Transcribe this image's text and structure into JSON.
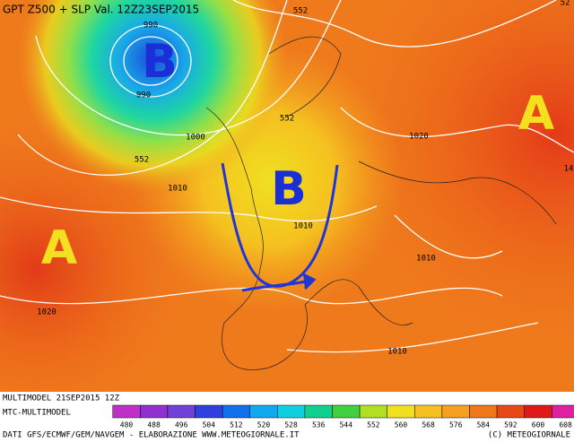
{
  "header": {
    "title": "GPT Z500 + SLP Val. 12Z23SEP2015"
  },
  "map": {
    "pressure_systems": [
      "B",
      "B",
      "A",
      "A"
    ],
    "contour_labels": [
      "990",
      "990",
      "552",
      "552",
      "552",
      "1000",
      "1010",
      "1010",
      "1020",
      "1010",
      "1020",
      "1010",
      "14",
      "52"
    ]
  },
  "footer": {
    "run": "MULTIMODEL 21SEP2015 12Z",
    "model": "MTC-MULTIMODEL",
    "credits": "DATI GFS/ECMWF/GEM/NAVGEM - ELABORAZIONE WWW.METEOGIORNALE.IT",
    "copyright": "(C) METEOGIORNALE"
  },
  "legend": {
    "labels": [
      "480",
      "488",
      "496",
      "504",
      "512",
      "520",
      "528",
      "536",
      "544",
      "552",
      "560",
      "568",
      "576",
      "584",
      "592",
      "600",
      "608"
    ]
  }
}
